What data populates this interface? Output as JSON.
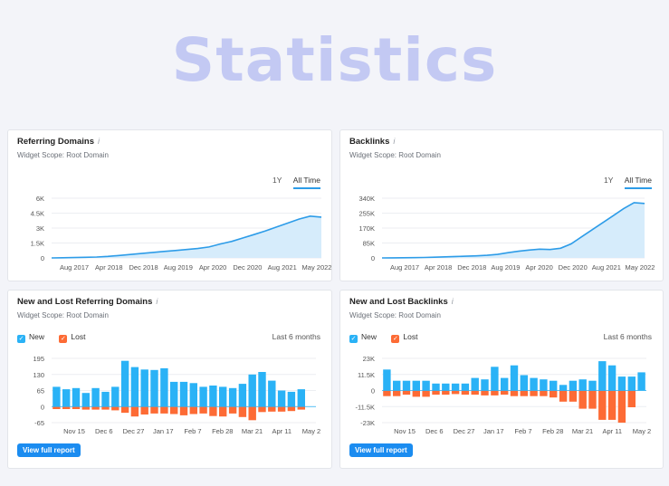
{
  "hero_title": "Statistics",
  "colors": {
    "accent": "#2d9ce8",
    "new": "#2ab2f6",
    "lost": "#fd6b35",
    "area": "#d6ecfb",
    "button": "#1b8cf0"
  },
  "cards": {
    "rd": {
      "title": "Referring Domains",
      "scope": "Widget Scope: Root Domain",
      "tabs": [
        "1Y",
        "All Time"
      ],
      "active_tab": "All Time"
    },
    "bl": {
      "title": "Backlinks",
      "scope": "Widget Scope: Root Domain",
      "tabs": [
        "1Y",
        "All Time"
      ],
      "active_tab": "All Time"
    },
    "nlrd": {
      "title": "New and Lost Referring Domains",
      "scope": "Widget Scope: Root Domain",
      "legend_new": "New",
      "legend_lost": "Lost",
      "period": "Last 6 months",
      "button": "View full report"
    },
    "nlbl": {
      "title": "New and Lost Backlinks",
      "scope": "Widget Scope: Root Domain",
      "legend_new": "New",
      "legend_lost": "Lost",
      "period": "Last 6 months",
      "button": "View full report"
    }
  },
  "chart_data": [
    {
      "id": "rd",
      "type": "area",
      "y_ticks": [
        "6K",
        "4.5K",
        "3K",
        "1.5K",
        "0"
      ],
      "ylim": [
        0,
        6000
      ],
      "x_ticks": [
        "Aug 2017",
        "Apr 2018",
        "Dec 2018",
        "Aug 2019",
        "Apr 2020",
        "Dec 2020",
        "Aug 2021",
        "May 2022"
      ],
      "values": [
        0,
        20,
        40,
        60,
        90,
        150,
        250,
        350,
        450,
        550,
        650,
        750,
        850,
        950,
        1100,
        1400,
        1650,
        2000,
        2350,
        2700,
        3100,
        3500,
        3900,
        4200,
        4100
      ]
    },
    {
      "id": "bl",
      "type": "area",
      "y_ticks": [
        "340K",
        "255K",
        "170K",
        "85K",
        "0"
      ],
      "ylim": [
        0,
        340000
      ],
      "x_ticks": [
        "Aug 2017",
        "Apr 2018",
        "Dec 2018",
        "Aug 2019",
        "Apr 2020",
        "Dec 2020",
        "Aug 2021",
        "May 2022"
      ],
      "values": [
        0,
        500,
        1000,
        1500,
        2500,
        4000,
        6000,
        8000,
        10000,
        12000,
        15000,
        20000,
        30000,
        38000,
        45000,
        50000,
        48000,
        55000,
        80000,
        120000,
        160000,
        200000,
        240000,
        280000,
        315000,
        310000
      ]
    },
    {
      "id": "nlrd",
      "type": "bar",
      "y_ticks": [
        "195",
        "130",
        "65",
        "0",
        "-65"
      ],
      "ylim": [
        -65,
        195
      ],
      "x_ticks": [
        "Nov 15",
        "Dec 6",
        "Dec 27",
        "Jan 17",
        "Feb 7",
        "Feb 28",
        "Mar 21",
        "Apr 11",
        "May 2"
      ],
      "series": [
        {
          "name": "New",
          "values": [
            80,
            70,
            75,
            55,
            75,
            60,
            80,
            185,
            160,
            150,
            148,
            155,
            100,
            100,
            95,
            80,
            85,
            80,
            75,
            92,
            130,
            140,
            105,
            65,
            60,
            70,
            0
          ]
        },
        {
          "name": "Lost",
          "values": [
            -10,
            -10,
            -10,
            -12,
            -12,
            -12,
            -15,
            -25,
            -40,
            -32,
            -28,
            -28,
            -30,
            -35,
            -30,
            -28,
            -38,
            -40,
            -28,
            -42,
            -55,
            -22,
            -20,
            -20,
            -18,
            -12,
            0
          ]
        }
      ]
    },
    {
      "id": "nlbl",
      "type": "bar",
      "y_ticks": [
        "23K",
        "11.5K",
        "0",
        "-11.5K",
        "-23K"
      ],
      "ylim": [
        -23000,
        23000
      ],
      "x_ticks": [
        "Nov 15",
        "Dec 6",
        "Dec 27",
        "Jan 17",
        "Feb 7",
        "Feb 28",
        "Mar 21",
        "Apr 11",
        "May 2"
      ],
      "series": [
        {
          "name": "New",
          "values": [
            15000,
            7000,
            7000,
            7000,
            7000,
            5000,
            5000,
            5000,
            5000,
            9000,
            8000,
            17000,
            9000,
            18000,
            11000,
            9000,
            8000,
            7000,
            4000,
            7000,
            8000,
            7000,
            21000,
            18000,
            10000,
            10000,
            13000
          ]
        },
        {
          "name": "Lost",
          "values": [
            -4000,
            -4000,
            -3000,
            -4500,
            -4500,
            -3000,
            -3000,
            -2500,
            -3000,
            -3000,
            -3500,
            -3500,
            -3000,
            -4000,
            -4000,
            -4000,
            -4000,
            -5000,
            -8000,
            -8000,
            -13000,
            -13000,
            -21000,
            -21000,
            -23000,
            -12000,
            0
          ]
        }
      ]
    }
  ]
}
